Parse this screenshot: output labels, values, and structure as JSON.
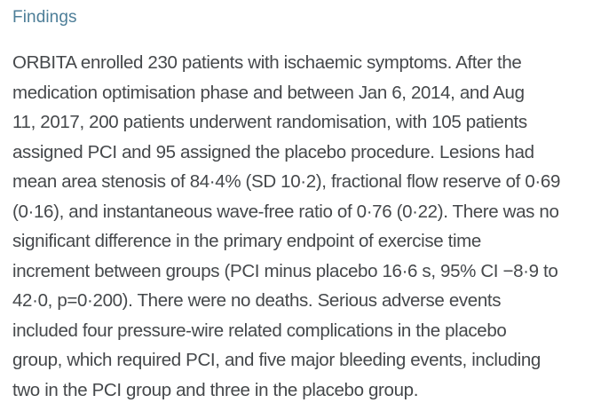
{
  "section": {
    "heading": "Findings",
    "paragraph_lines": [
      "ORBITA enrolled 230 patients with ischaemic symptoms. After the",
      "medication optimisation phase and between Jan 6, 2014, and Aug",
      "11, 2017, 200 patients underwent randomisation, with 105 patients",
      "assigned PCI and 95 assigned the placebo procedure. Lesions had",
      "mean area stenosis of 84·4% (SD 10·2), fractional flow reserve of 0·69",
      "(0·16), and instantaneous wave-free ratio of 0·76 (0·22). There was no",
      "significant difference in the primary endpoint of exercise time",
      "increment between groups (PCI minus placebo 16·6 s, 95% CI −8·9 to",
      "42·0, p=0·200). There were no deaths. Serious adverse events",
      "included four pressure-wire related complications in the placebo",
      "group, which required PCI, and five major bleeding events, including",
      "two in the PCI group and three in the placebo group."
    ]
  },
  "colors": {
    "heading_accent": "#4d7e98",
    "body_text": "#45484b",
    "background": "#ffffff"
  }
}
